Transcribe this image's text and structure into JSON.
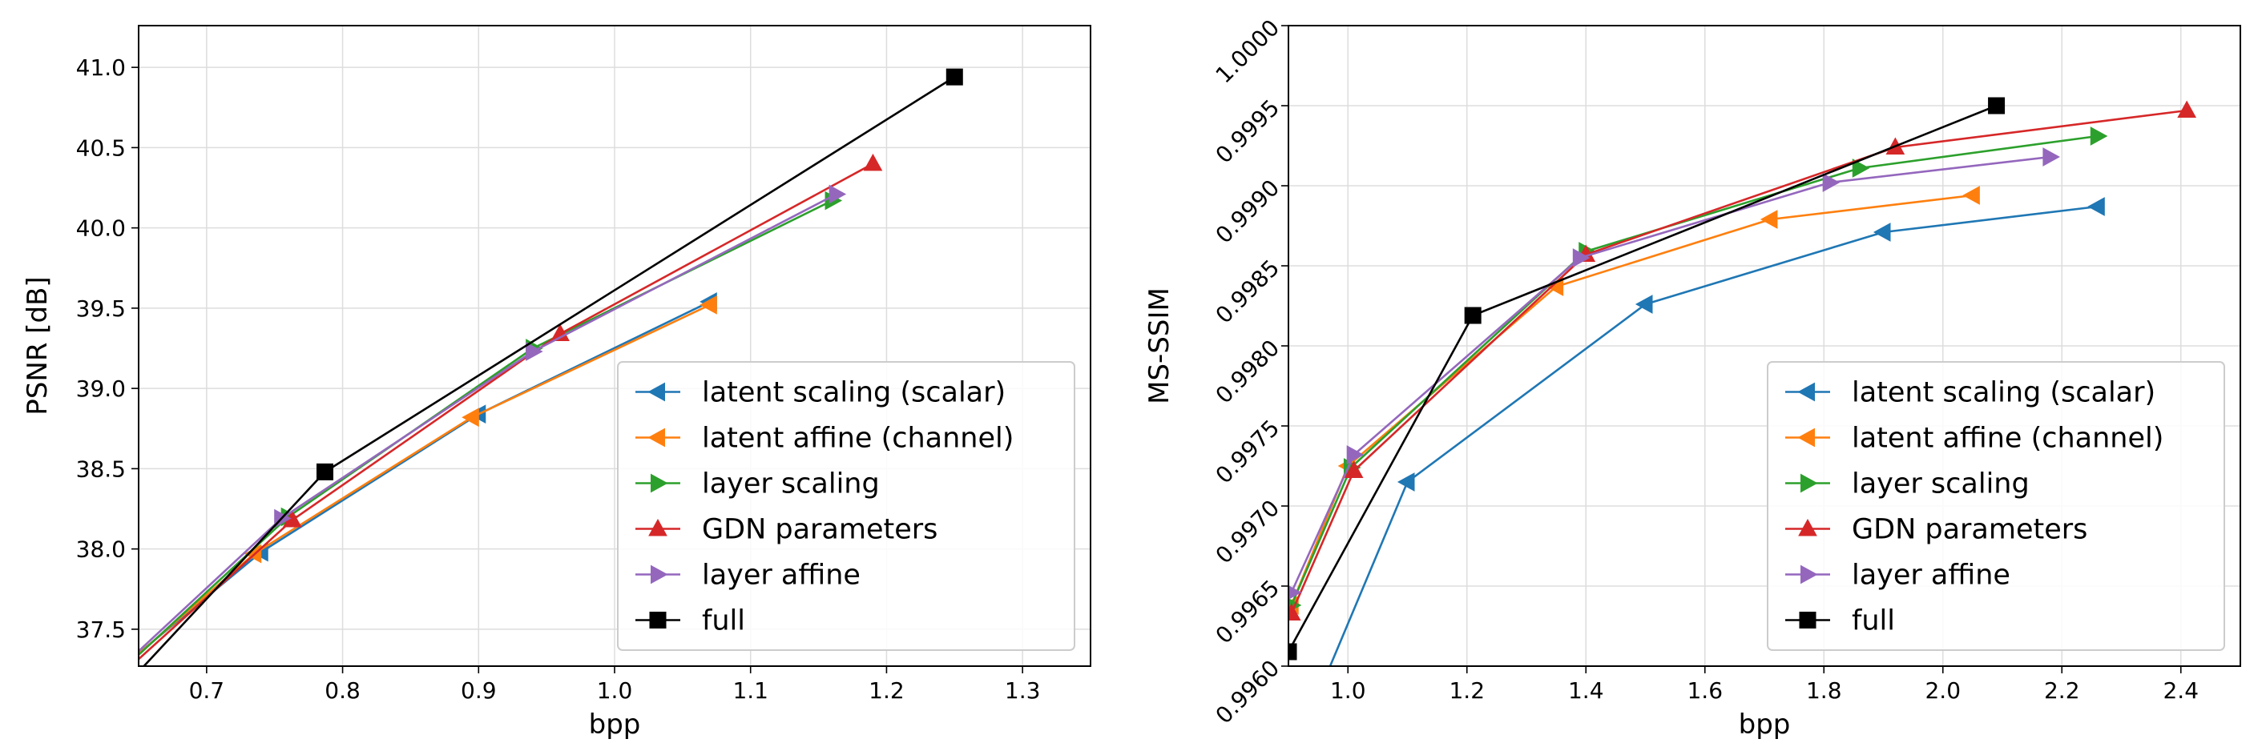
{
  "chart_data": [
    {
      "type": "line",
      "title": "",
      "xlabel": "bpp",
      "ylabel": "PSNR [dB]",
      "xlim": [
        0.65,
        1.35
      ],
      "ylim": [
        37.27,
        41.26
      ],
      "xticks": [
        0.7,
        0.8,
        0.9,
        1.0,
        1.1,
        1.2,
        1.3
      ],
      "xtick_labels": [
        "0.7",
        "0.8",
        "0.9",
        "1.0",
        "1.1",
        "1.2",
        "1.3"
      ],
      "yticks": [
        37.5,
        38.0,
        38.5,
        39.0,
        39.5,
        40.0,
        40.5,
        41.0
      ],
      "ytick_labels": [
        "37.5",
        "38.0",
        "38.5",
        "39.0",
        "39.5",
        "40.0",
        "40.5",
        "41.0"
      ],
      "ytick_rotation": 0,
      "grid": true,
      "legend_position": "lower-right",
      "series": [
        {
          "name": "latent scaling (scalar)",
          "color": "#1f77b4",
          "marker": "triangle-left",
          "x": [
            0.6,
            0.74,
            0.9,
            1.07
          ],
          "y": [
            37.0,
            37.98,
            38.84,
            39.54
          ]
        },
        {
          "name": "latent affine (channel)",
          "color": "#ff7f0e",
          "marker": "triangle-left",
          "x": [
            0.6,
            0.735,
            0.895,
            1.07
          ],
          "y": [
            36.98,
            37.97,
            38.82,
            39.52
          ]
        },
        {
          "name": "layer scaling",
          "color": "#2ca02c",
          "marker": "triangle-right",
          "x": [
            0.6,
            0.76,
            0.94,
            1.16
          ],
          "y": [
            36.95,
            38.2,
            39.25,
            40.17
          ]
        },
        {
          "name": "GDN parameters",
          "color": "#d62728",
          "marker": "triangle-up",
          "x": [
            0.6,
            0.763,
            0.96,
            1.19
          ],
          "y": [
            36.93,
            38.18,
            39.34,
            40.4
          ]
        },
        {
          "name": "layer affine",
          "color": "#9467bd",
          "marker": "triangle-right",
          "x": [
            0.6,
            0.755,
            0.94,
            1.163
          ],
          "y": [
            36.97,
            38.19,
            39.23,
            40.21
          ]
        },
        {
          "name": "full",
          "color": "#000000",
          "marker": "square",
          "x": [
            0.6,
            0.787,
            1.25
          ],
          "y": [
            36.78,
            38.48,
            40.94
          ]
        }
      ]
    },
    {
      "type": "line",
      "title": "",
      "xlabel": "bpp",
      "ylabel": "MS-SSIM",
      "xlim": [
        0.9,
        2.5
      ],
      "ylim": [
        0.996,
        1.0
      ],
      "xticks": [
        1.0,
        1.2,
        1.4,
        1.6,
        1.8,
        2.0,
        2.2,
        2.4
      ],
      "xtick_labels": [
        "1.0",
        "1.2",
        "1.4",
        "1.6",
        "1.8",
        "2.0",
        "2.2",
        "2.4"
      ],
      "yticks": [
        0.996,
        0.9965,
        0.997,
        0.9975,
        0.998,
        0.9985,
        0.999,
        0.9995,
        1.0
      ],
      "ytick_labels": [
        "0.9960",
        "0.9965",
        "0.9970",
        "0.9975",
        "0.9980",
        "0.9985",
        "0.9990",
        "0.9995",
        "1.0000"
      ],
      "ytick_rotation": -45,
      "grid": true,
      "legend_position": "lower-right",
      "series": [
        {
          "name": "latent scaling (scalar)",
          "color": "#1f77b4",
          "marker": "triangle-left",
          "x": [
            0.9,
            1.1,
            1.5,
            1.9,
            2.26
          ],
          "y": [
            0.99538,
            0.99715,
            0.99826,
            0.99871,
            0.99887
          ]
        },
        {
          "name": "latent affine (channel)",
          "color": "#ff7f0e",
          "marker": "triangle-left",
          "x": [
            0.905,
            1.0,
            1.35,
            1.71,
            2.05
          ],
          "y": [
            0.99638,
            0.99725,
            0.99837,
            0.99879,
            0.99894
          ]
        },
        {
          "name": "layer scaling",
          "color": "#2ca02c",
          "marker": "triangle-right",
          "x": [
            0.905,
            1.005,
            1.4,
            1.86,
            2.26
          ],
          "y": [
            0.99638,
            0.99724,
            0.99859,
            0.99911,
            0.99931
          ]
        },
        {
          "name": "GDN parameters",
          "color": "#d62728",
          "marker": "triangle-up",
          "x": [
            0.905,
            1.01,
            1.4,
            1.92,
            2.41
          ],
          "y": [
            0.99633,
            0.99722,
            0.99857,
            0.99924,
            0.99947
          ]
        },
        {
          "name": "layer affine",
          "color": "#9467bd",
          "marker": "triangle-right",
          "x": [
            0.905,
            1.01,
            1.39,
            1.81,
            2.18
          ],
          "y": [
            0.99646,
            0.99732,
            0.99855,
            0.99902,
            0.99918
          ]
        },
        {
          "name": "full",
          "color": "#000000",
          "marker": "square",
          "x": [
            0.9,
            1.21,
            2.09
          ],
          "y": [
            0.99609,
            0.99819,
            0.9995
          ]
        }
      ]
    }
  ]
}
